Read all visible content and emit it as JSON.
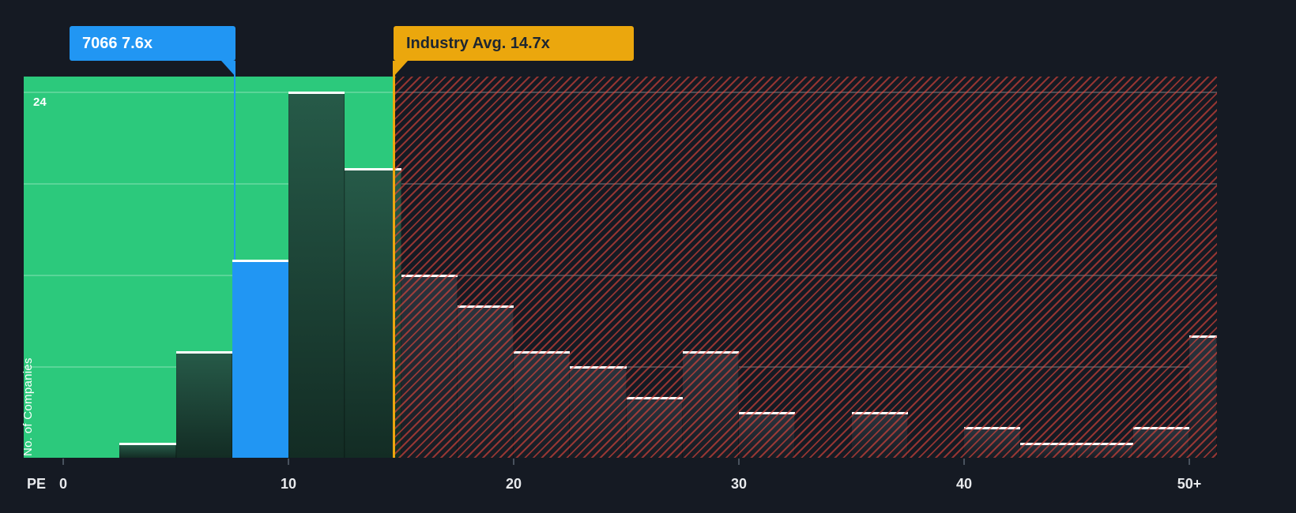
{
  "chart_data": {
    "type": "bar",
    "x_axis": {
      "name": "PE",
      "ticks": [
        {
          "label": "0",
          "pe": 0
        },
        {
          "label": "10",
          "pe": 10
        },
        {
          "label": "20",
          "pe": 20
        },
        {
          "label": "30",
          "pe": 30
        },
        {
          "label": "40",
          "pe": 40
        },
        {
          "label": "50+",
          "pe": 50
        }
      ]
    },
    "y_axis": {
      "title": "No. of Companies",
      "top_label": "24",
      "max": 25,
      "gridlines": [
        6,
        12,
        18,
        24
      ]
    },
    "bin_width": 2.5,
    "bins": [
      {
        "range": "0-2.5",
        "count": 0
      },
      {
        "range": "2.5-5",
        "count": 1
      },
      {
        "range": "5-7.5",
        "count": 7
      },
      {
        "range": "7.5-10",
        "count": 13
      },
      {
        "range": "10-12.5",
        "count": 24
      },
      {
        "range": "12.5-15",
        "count": 19
      },
      {
        "range": "15-17.5",
        "count": 12
      },
      {
        "range": "17.5-20",
        "count": 10
      },
      {
        "range": "20-22.5",
        "count": 7
      },
      {
        "range": "22.5-25",
        "count": 6
      },
      {
        "range": "25-27.5",
        "count": 4
      },
      {
        "range": "27.5-30",
        "count": 7
      },
      {
        "range": "30-32.5",
        "count": 3
      },
      {
        "range": "32.5-35",
        "count": 0
      },
      {
        "range": "35-37.5",
        "count": 3
      },
      {
        "range": "37.5-40",
        "count": 0
      },
      {
        "range": "40-42.5",
        "count": 2
      },
      {
        "range": "42.5-45",
        "count": 1
      },
      {
        "range": "45-47.5",
        "count": 1
      },
      {
        "range": "47.5-50",
        "count": 2
      },
      {
        "range": "50+",
        "count": 8
      }
    ],
    "annotations": {
      "company": {
        "text": "7066 7.6x",
        "ticker": "7066",
        "pe": 7.6
      },
      "industry": {
        "text": "Industry Avg. 14.7x",
        "pe": 14.7
      }
    },
    "colors": {
      "background": "#151a23",
      "green_zone": "#2cc97c",
      "company_blue": "#2196f3",
      "industry_amber": "#eba70d",
      "hatch_red": "#e2463c",
      "bar_green_top": "#265a48",
      "bar_green_bottom": "#132c24",
      "bar_dark_top": "#2b333d",
      "bar_dark_bottom": "#171c24",
      "bar_top_edge": "#ffffff",
      "axis_text": "#e8eaed"
    }
  }
}
